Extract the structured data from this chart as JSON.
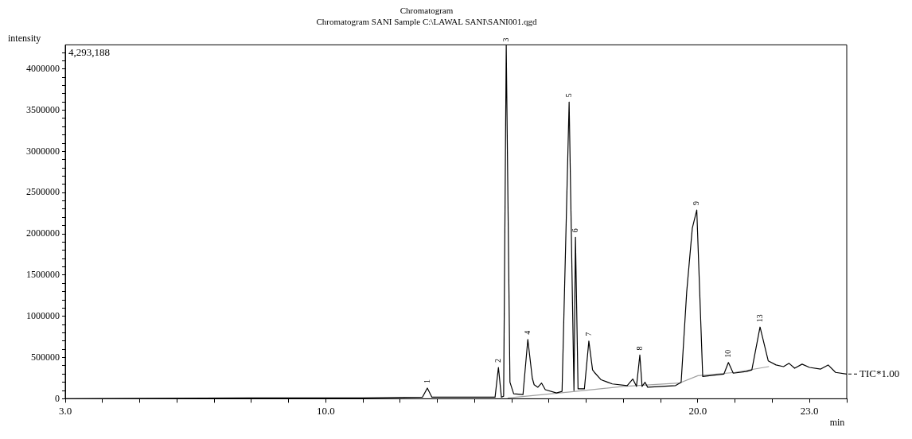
{
  "chart_data": {
    "type": "line",
    "title": "Chromatogram",
    "subtitle": "Chromatogram SANI Sample C:\\LAWAL SANI\\SANI001.qgd",
    "xlabel": "min",
    "ylabel": "intensity",
    "xlim": [
      3,
      24
    ],
    "ylim": [
      0,
      4293188
    ],
    "xticks": [
      {
        "value": 3,
        "label": "3.0"
      },
      {
        "value": 4,
        "label": null
      },
      {
        "value": 5,
        "label": null
      },
      {
        "value": 6,
        "label": null
      },
      {
        "value": 7,
        "label": null
      },
      {
        "value": 8,
        "label": null
      },
      {
        "value": 9,
        "label": null
      },
      {
        "value": 10,
        "label": "10.0"
      },
      {
        "value": 11,
        "label": null
      },
      {
        "value": 12,
        "label": null
      },
      {
        "value": 13,
        "label": null
      },
      {
        "value": 14,
        "label": null
      },
      {
        "value": 15,
        "label": null
      },
      {
        "value": 16,
        "label": null
      },
      {
        "value": 17,
        "label": null
      },
      {
        "value": 18,
        "label": null
      },
      {
        "value": 19,
        "label": null
      },
      {
        "value": 20,
        "label": "20.0"
      },
      {
        "value": 21,
        "label": null
      },
      {
        "value": 22,
        "label": null
      },
      {
        "value": 23,
        "label": "23.0"
      },
      {
        "value": 24,
        "label": null
      }
    ],
    "yticks": [
      0,
      {
        "value": 100000,
        "label": null
      },
      {
        "value": 200000,
        "label": null
      },
      {
        "value": 300000,
        "label": null
      },
      {
        "value": 400000,
        "label": null
      },
      500000,
      {
        "value": 600000,
        "label": null
      },
      {
        "value": 700000,
        "label": null
      },
      {
        "value": 800000,
        "label": null
      },
      {
        "value": 900000,
        "label": null
      },
      1000000,
      {
        "value": 1100000,
        "label": null
      },
      {
        "value": 1200000,
        "label": null
      },
      {
        "value": 1300000,
        "label": null
      },
      {
        "value": 1400000,
        "label": null
      },
      1500000,
      {
        "value": 1600000,
        "label": null
      },
      {
        "value": 1700000,
        "label": null
      },
      {
        "value": 1800000,
        "label": null
      },
      {
        "value": 1900000,
        "label": null
      },
      2000000,
      {
        "value": 2100000,
        "label": null
      },
      {
        "value": 2200000,
        "label": null
      },
      {
        "value": 2300000,
        "label": null
      },
      {
        "value": 2400000,
        "label": null
      },
      2500000,
      {
        "value": 2600000,
        "label": null
      },
      {
        "value": 2700000,
        "label": null
      },
      {
        "value": 2800000,
        "label": null
      },
      {
        "value": 2900000,
        "label": null
      },
      3000000,
      {
        "value": 3100000,
        "label": null
      },
      {
        "value": 3200000,
        "label": null
      },
      {
        "value": 3300000,
        "label": null
      },
      {
        "value": 3400000,
        "label": null
      },
      3500000,
      {
        "value": 3600000,
        "label": null
      },
      {
        "value": 3700000,
        "label": null
      },
      {
        "value": 3800000,
        "label": null
      },
      {
        "value": 3900000,
        "label": null
      },
      4000000,
      {
        "value": 4100000,
        "label": null
      },
      {
        "value": 4200000,
        "label": null
      }
    ],
    "grid": false,
    "legend": "right",
    "marker": "none",
    "line_style": "solid",
    "series": [
      {
        "name": "TIC*1.00",
        "color": "#000000",
        "x": [
          3,
          8,
          11,
          12.6,
          12.73,
          12.85,
          14,
          14.55,
          14.64,
          14.72,
          14.78,
          14.85,
          14.95,
          15.05,
          15.3,
          15.43,
          15.55,
          15.6,
          15.7,
          15.8,
          15.9,
          16.2,
          16.35,
          16.54,
          16.67,
          16.71,
          16.78,
          16.95,
          17.07,
          17.17,
          17.22,
          17.4,
          17.7,
          18.1,
          18.25,
          18.35,
          18.44,
          18.5,
          18.58,
          18.65,
          19.4,
          19.55,
          19.7,
          19.85,
          19.97,
          20.13,
          20.5,
          20.7,
          20.82,
          20.95,
          21.3,
          21.45,
          21.67,
          21.89,
          22.1,
          22.3,
          22.45,
          22.6,
          22.8,
          23,
          23.3,
          23.5,
          23.7,
          24
        ],
        "values": [
          0,
          10000,
          10000,
          20000,
          130000,
          20000,
          20000,
          20000,
          380000,
          20000,
          30000,
          4293188,
          200000,
          60000,
          50000,
          720000,
          250000,
          170000,
          140000,
          190000,
          110000,
          70000,
          90000,
          3600000,
          100000,
          1960000,
          120000,
          120000,
          700000,
          350000,
          320000,
          230000,
          180000,
          160000,
          240000,
          150000,
          530000,
          150000,
          200000,
          140000,
          160000,
          200000,
          1300000,
          2070000,
          2290000,
          270000,
          290000,
          300000,
          440000,
          310000,
          330000,
          350000,
          870000,
          460000,
          410000,
          390000,
          430000,
          370000,
          420000,
          380000,
          360000,
          410000,
          320000,
          300000
        ]
      },
      {
        "color": "#a0a0a0",
        "x": [
          14.9,
          16.5,
          18,
          19.5,
          20,
          21,
          21.9
        ],
        "values": [
          10000,
          80000,
          150000,
          190000,
          280000,
          320000,
          390000
        ]
      }
    ],
    "annotations": [
      "4,293,188",
      {
        "text": "1",
        "x": 12.73,
        "y": 130000
      },
      {
        "text": "2",
        "x": 14.64,
        "y": 380000
      },
      {
        "text": "3",
        "x": 14.85,
        "y": 4293188
      },
      {
        "text": "4",
        "x": 15.43,
        "y": 720000
      },
      {
        "text": "5",
        "x": 16.54,
        "y": 3600000
      },
      {
        "text": "6",
        "x": 16.71,
        "y": 1960000
      },
      {
        "text": "7",
        "x": 17.07,
        "y": 700000
      },
      {
        "text": "8",
        "x": 18.44,
        "y": 530000
      },
      {
        "text": "9",
        "x": 19.97,
        "y": 2290000
      },
      {
        "text": "10",
        "x": 20.82,
        "y": 440000
      },
      {
        "text": "13",
        "x": 21.67,
        "y": 870000
      }
    ]
  }
}
